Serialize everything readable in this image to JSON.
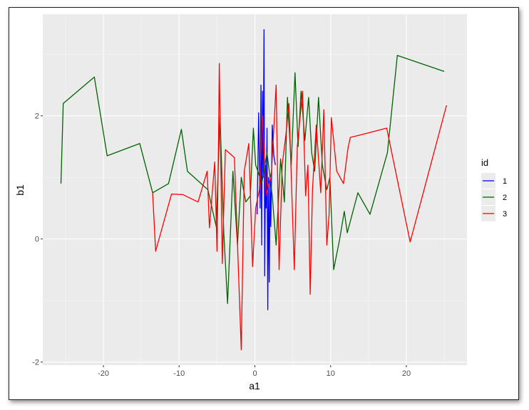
{
  "chart_data": {
    "type": "line",
    "xlabel": "a1",
    "ylabel": "b1",
    "xlim": [
      -28,
      28
    ],
    "ylim": [
      -2.05,
      3.65
    ],
    "x_ticks": [
      -20,
      -10,
      0,
      10,
      20
    ],
    "y_ticks": [
      -2,
      0,
      2
    ],
    "x_tick_labels": [
      "-20",
      "-10",
      "0",
      "10",
      "20"
    ],
    "y_tick_labels": [
      "-2",
      "0",
      "2"
    ],
    "grid": true,
    "legend": {
      "title": "id",
      "position": "right"
    },
    "series": [
      {
        "name": "1",
        "color": "#0000ff",
        "x": [
          0.3,
          0.5,
          0.7,
          0.8,
          0.9,
          1.0,
          1.1,
          1.2,
          1.3,
          1.4,
          1.5,
          1.6,
          1.7,
          1.8,
          1.9,
          2.0,
          2.1,
          2.2,
          2.3,
          2.5,
          2.7
        ],
        "y": [
          0.4,
          2.05,
          0.5,
          2.5,
          -0.1,
          2.4,
          1.0,
          3.4,
          -0.6,
          1.2,
          0.5,
          1.8,
          -1.15,
          1.0,
          -0.7,
          0.95,
          0.2,
          1.0,
          1.85,
          1.35,
          1.2
        ]
      },
      {
        "name": "2",
        "color": "#006400",
        "x": [
          -25.6,
          -25.3,
          -21.2,
          -19.5,
          -15.2,
          -13.5,
          -11.4,
          -9.7,
          -8.9,
          -6.2,
          -5.1,
          -4.6,
          -4.1,
          -3.6,
          -2.9,
          -2.3,
          -1.8,
          -1.2,
          -0.6,
          -0.2,
          0.1,
          0.4,
          0.9,
          1.6,
          2.3,
          2.8,
          3.4,
          3.9,
          4.3,
          4.8,
          5.3,
          5.7,
          6.1,
          6.6,
          7.1,
          7.5,
          7.9,
          8.4,
          8.9,
          9.5,
          9.9,
          10.4,
          11.2,
          11.8,
          12.2,
          13.6,
          15.2,
          17.5,
          18.8,
          25
        ],
        "y": [
          0.9,
          2.2,
          2.63,
          1.35,
          1.55,
          0.75,
          0.9,
          1.78,
          1.1,
          0.8,
          0.2,
          2.0,
          0.1,
          -1.05,
          1.1,
          -0.1,
          1.0,
          0.6,
          0.7,
          1.8,
          1.2,
          1.1,
          0.9,
          1.4,
          0.7,
          -0.1,
          1.3,
          0.6,
          2.3,
          1.2,
          2.7,
          1.5,
          2.4,
          1.6,
          2.3,
          1.4,
          1.1,
          2.3,
          1.2,
          0.8,
          1.0,
          -0.5,
          0.0,
          0.45,
          0.1,
          0.75,
          0.4,
          1.4,
          2.98,
          2.72
        ]
      },
      {
        "name": "3",
        "color": "#ff0000",
        "x": [
          -13.5,
          -13.1,
          -11,
          -9.5,
          -7.5,
          -6.3,
          -6,
          -5.3,
          -5,
          -4.8,
          -4.7,
          -4.3,
          -3.9,
          -3.6,
          -2.7,
          -1.8,
          -1.4,
          -0.8,
          -0.3,
          0.1,
          0.6,
          1.0,
          1.5,
          2.2,
          2.8,
          3.2,
          3.6,
          4.1,
          4.5,
          5.2,
          5.6,
          6.3,
          6.7,
          7.0,
          7.3,
          7.6,
          8.1,
          8.7,
          9.1,
          9.5,
          9.8,
          10.1,
          10.8,
          11.7,
          12.3,
          12.6,
          13.3,
          17.4,
          20.5,
          25.3
        ],
        "y": [
          0.75,
          -0.2,
          0.73,
          0.72,
          0.6,
          1.1,
          0.18,
          1.25,
          -0.2,
          1.6,
          2.85,
          -0.4,
          1.45,
          1.42,
          1.32,
          -1.8,
          1.1,
          1.55,
          -0.45,
          0.5,
          0.8,
          2.0,
          0.7,
          1.1,
          2.5,
          -0.5,
          1.2,
          1.7,
          2.2,
          -0.5,
          1.5,
          2.4,
          0.7,
          1.2,
          -0.9,
          0.8,
          1.85,
          0.75,
          2.1,
          -0.1,
          0.4,
          1.97,
          1.1,
          0.9,
          1.48,
          1.65,
          1.67,
          1.8,
          -0.05,
          2.17
        ]
      }
    ]
  }
}
